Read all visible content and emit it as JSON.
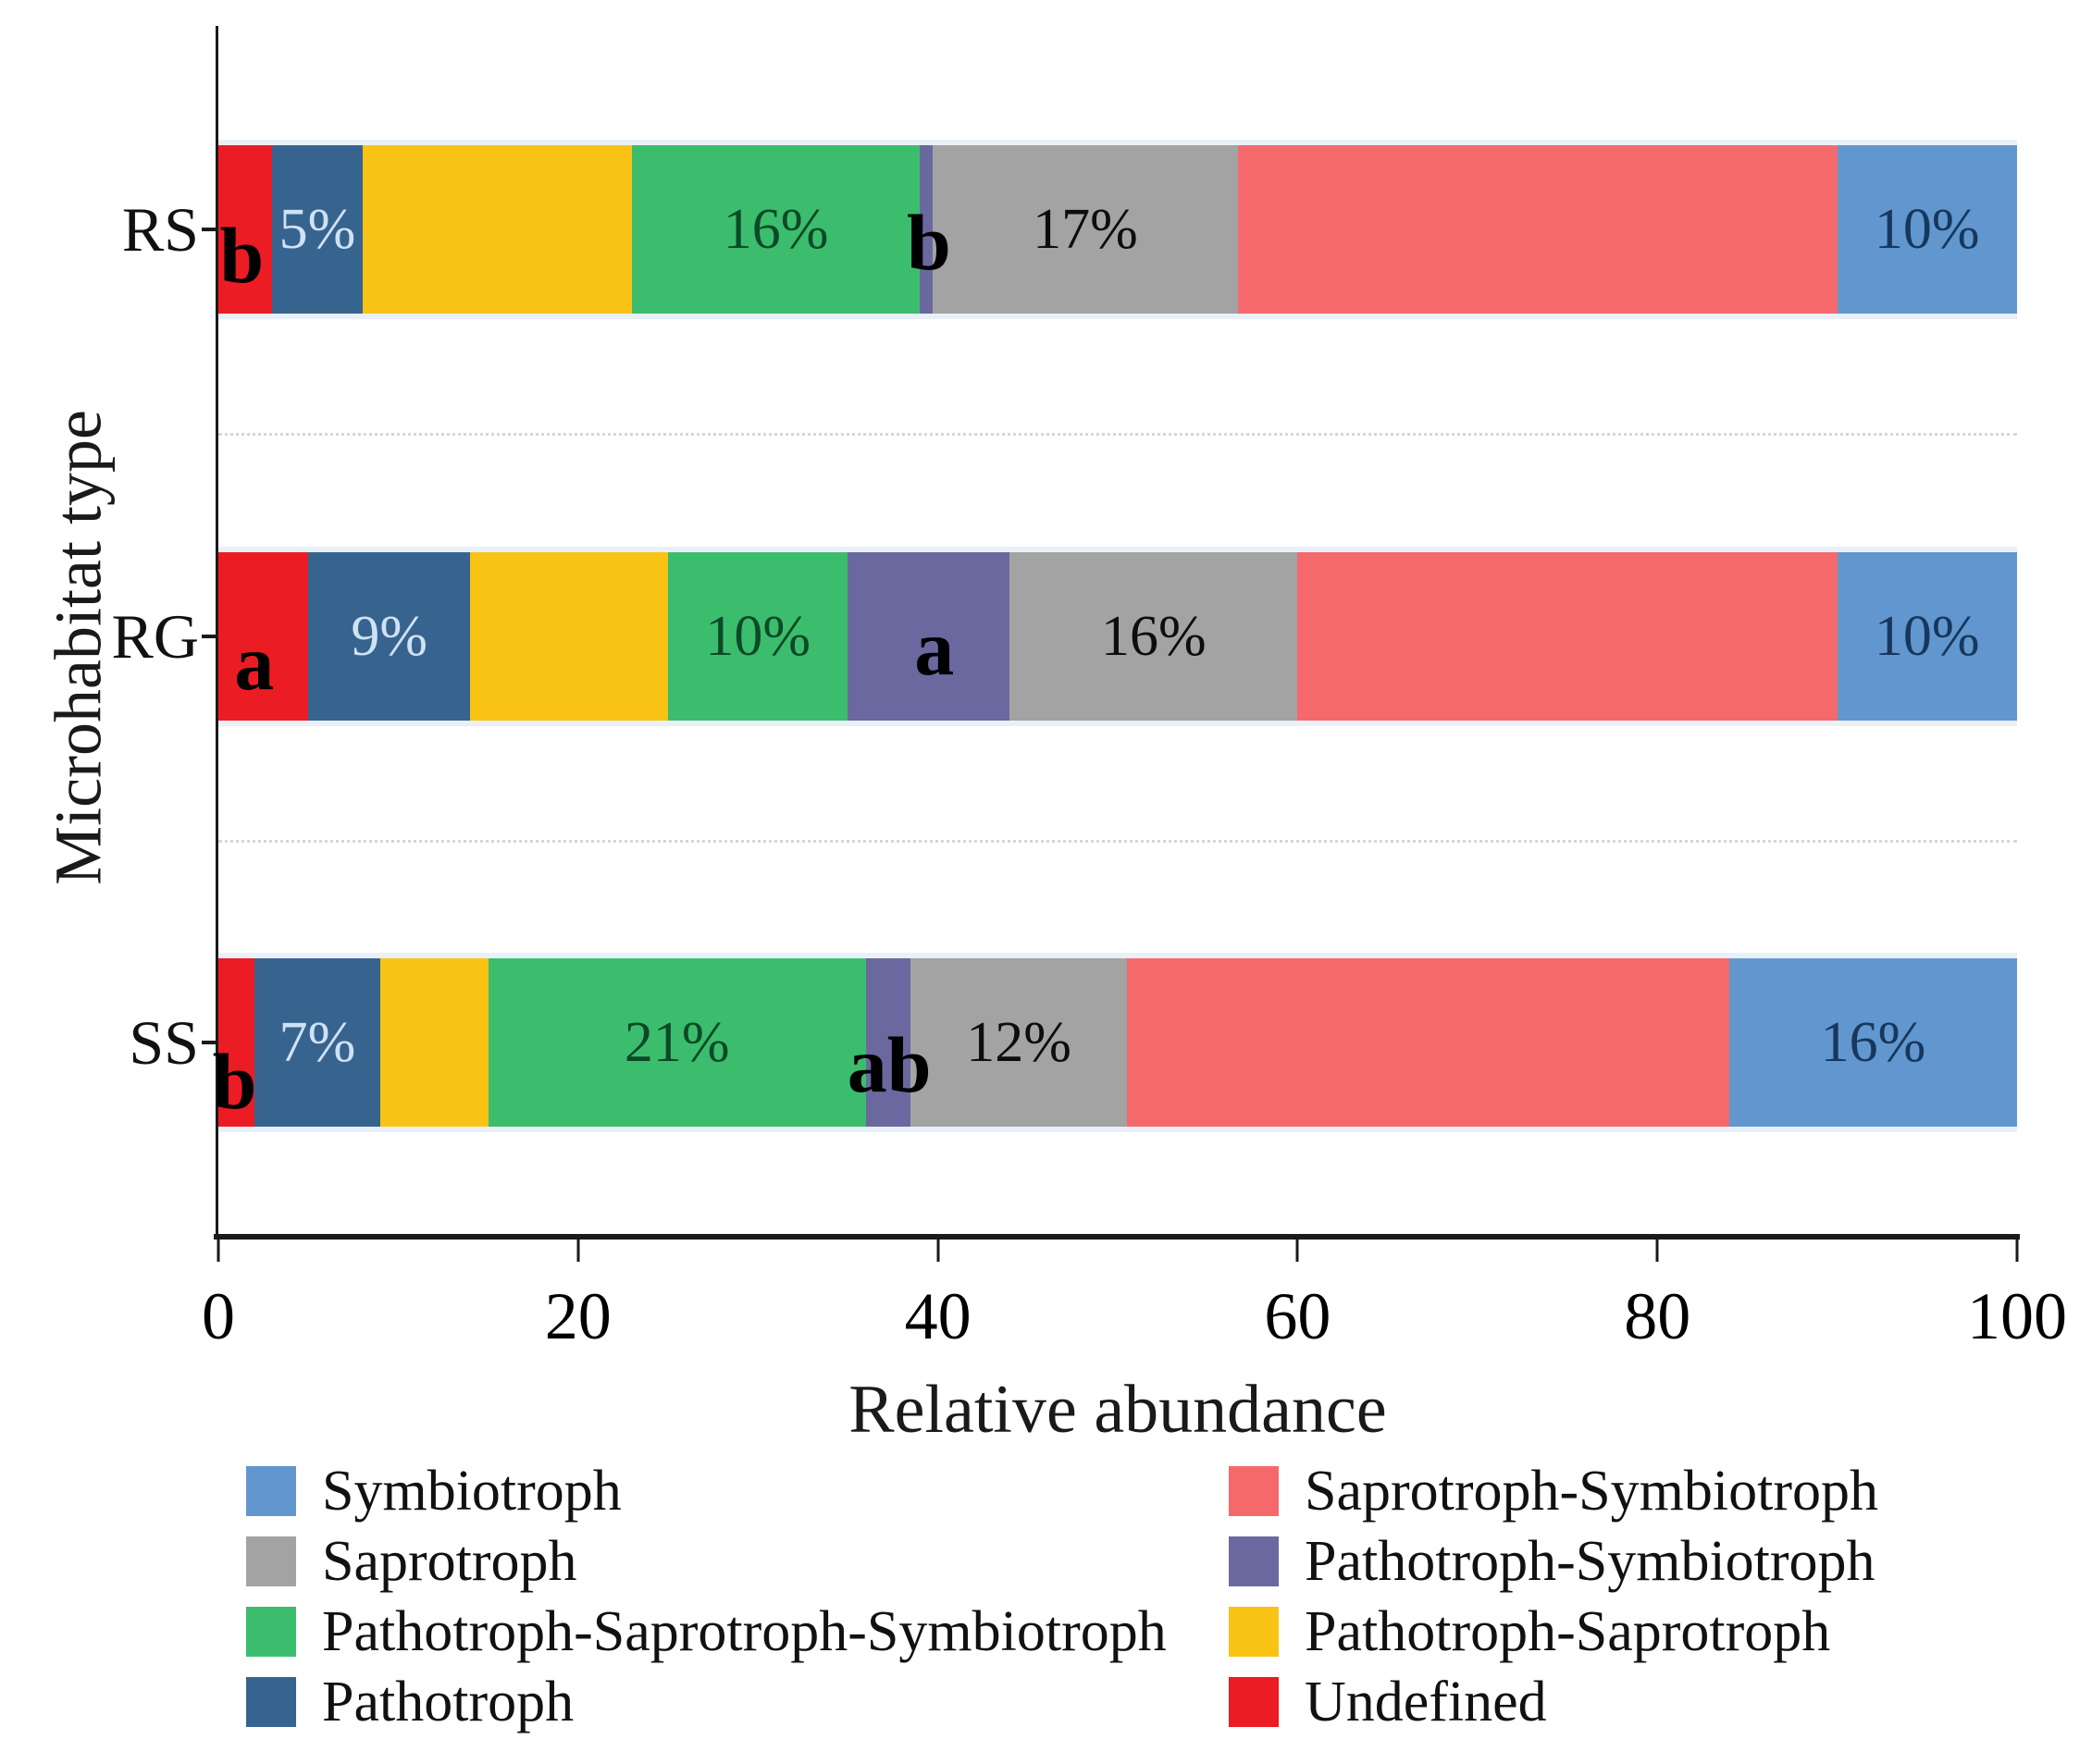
{
  "chart_data": {
    "type": "bar",
    "stacked": true,
    "orientation": "horizontal",
    "title": "",
    "xlabel": "Relative abundance",
    "ylabel": "Microhabitat type",
    "xlim": [
      0,
      100
    ],
    "grid": "dotted horizontal separators between category rows",
    "x_ticks": [
      {
        "value": 0,
        "label": "0"
      },
      {
        "value": 20,
        "label": "20"
      },
      {
        "value": 40,
        "label": "40"
      },
      {
        "value": 60,
        "label": "60"
      },
      {
        "value": 80,
        "label": "80"
      },
      {
        "value": 100,
        "label": "100"
      }
    ],
    "categories": [
      "RS",
      "RG",
      "SS"
    ],
    "series": [
      {
        "name": "Undefined",
        "color": "#EC1C24",
        "values": [
          3,
          5,
          2
        ]
      },
      {
        "name": "Pathotroph",
        "color": "#36648F",
        "values": [
          5,
          9,
          7
        ]
      },
      {
        "name": "Pathotroph-Saprotroph",
        "color": "#F9C316",
        "values": [
          15,
          11,
          6
        ]
      },
      {
        "name": "Pathotroph-Saprotroph-Symbiotroph",
        "color": "#3CBD6E",
        "values": [
          16,
          10,
          21
        ]
      },
      {
        "name": "Pathotroph-Symbiotroph",
        "color": "#6A689F",
        "values": [
          0.7,
          9,
          2.5
        ]
      },
      {
        "name": "Saprotroph",
        "color": "#A3A3A3",
        "values": [
          17,
          16,
          12
        ]
      },
      {
        "name": "Saprotroph-Symbiotroph",
        "color": "#F5696D",
        "values": [
          33.3,
          30,
          33.5
        ]
      },
      {
        "name": "Symbiotroph",
        "color": "#6197CE",
        "values": [
          10,
          10,
          16
        ]
      }
    ],
    "segment_labels": [
      {
        "category": "RS",
        "series": "Pathotroph",
        "text": "5%",
        "color": "#CFE2F3"
      },
      {
        "category": "RS",
        "series": "Pathotroph-Saprotroph-Symbiotroph",
        "text": "16%",
        "color": "#0C4A26"
      },
      {
        "category": "RS",
        "series": "Saprotroph",
        "text": "17%",
        "color": "#0d0d0d"
      },
      {
        "category": "RS",
        "series": "Symbiotroph",
        "text": "10%",
        "color": "#17375E"
      },
      {
        "category": "RG",
        "series": "Pathotroph",
        "text": "9%",
        "color": "#CFE2F3"
      },
      {
        "category": "RG",
        "series": "Pathotroph-Saprotroph-Symbiotroph",
        "text": "10%",
        "color": "#0C4A26"
      },
      {
        "category": "RG",
        "series": "Saprotroph",
        "text": "16%",
        "color": "#0d0d0d"
      },
      {
        "category": "RG",
        "series": "Symbiotroph",
        "text": "10%",
        "color": "#17375E"
      },
      {
        "category": "SS",
        "series": "Pathotroph",
        "text": "7%",
        "color": "#CFE2F3"
      },
      {
        "category": "SS",
        "series": "Pathotroph-Saprotroph-Symbiotroph",
        "text": "21%",
        "color": "#0C4A26"
      },
      {
        "category": "SS",
        "series": "Saprotroph",
        "text": "12%",
        "color": "#0d0d0d"
      },
      {
        "category": "SS",
        "series": "Symbiotroph",
        "text": "16%",
        "color": "#17375E"
      }
    ],
    "significance_letters": [
      {
        "category": "RS",
        "text": "b",
        "x": 1.3,
        "dy": 28
      },
      {
        "category": "RS",
        "text": "b",
        "x": 39.5,
        "dy": 14
      },
      {
        "category": "RG",
        "text": "a",
        "x": 2.0,
        "dy": 28
      },
      {
        "category": "RG",
        "text": "a",
        "x": 39.8,
        "dy": 12
      },
      {
        "category": "SS",
        "text": "b",
        "x": 0.9,
        "dy": 42
      },
      {
        "category": "SS",
        "text": "ab",
        "x": 37.3,
        "dy": 24
      }
    ]
  },
  "legend": {
    "columns": [
      {
        "items": [
          {
            "label": "Symbiotroph",
            "color": "#6197CE"
          },
          {
            "label": "Saprotroph",
            "color": "#A3A3A3"
          },
          {
            "label": "Pathotroph-Saprotroph-Symbiotroph",
            "color": "#3CBD6E"
          },
          {
            "label": "Pathotroph",
            "color": "#36648F"
          }
        ]
      },
      {
        "items": [
          {
            "label": "Saprotroph-Symbiotroph",
            "color": "#F5696D"
          },
          {
            "label": "Pathotroph-Symbiotroph",
            "color": "#6A689F"
          },
          {
            "label": "Pathotroph-Saprotroph",
            "color": "#F9C316"
          },
          {
            "label": "Undefined",
            "color": "#EC1C24"
          }
        ]
      }
    ]
  }
}
